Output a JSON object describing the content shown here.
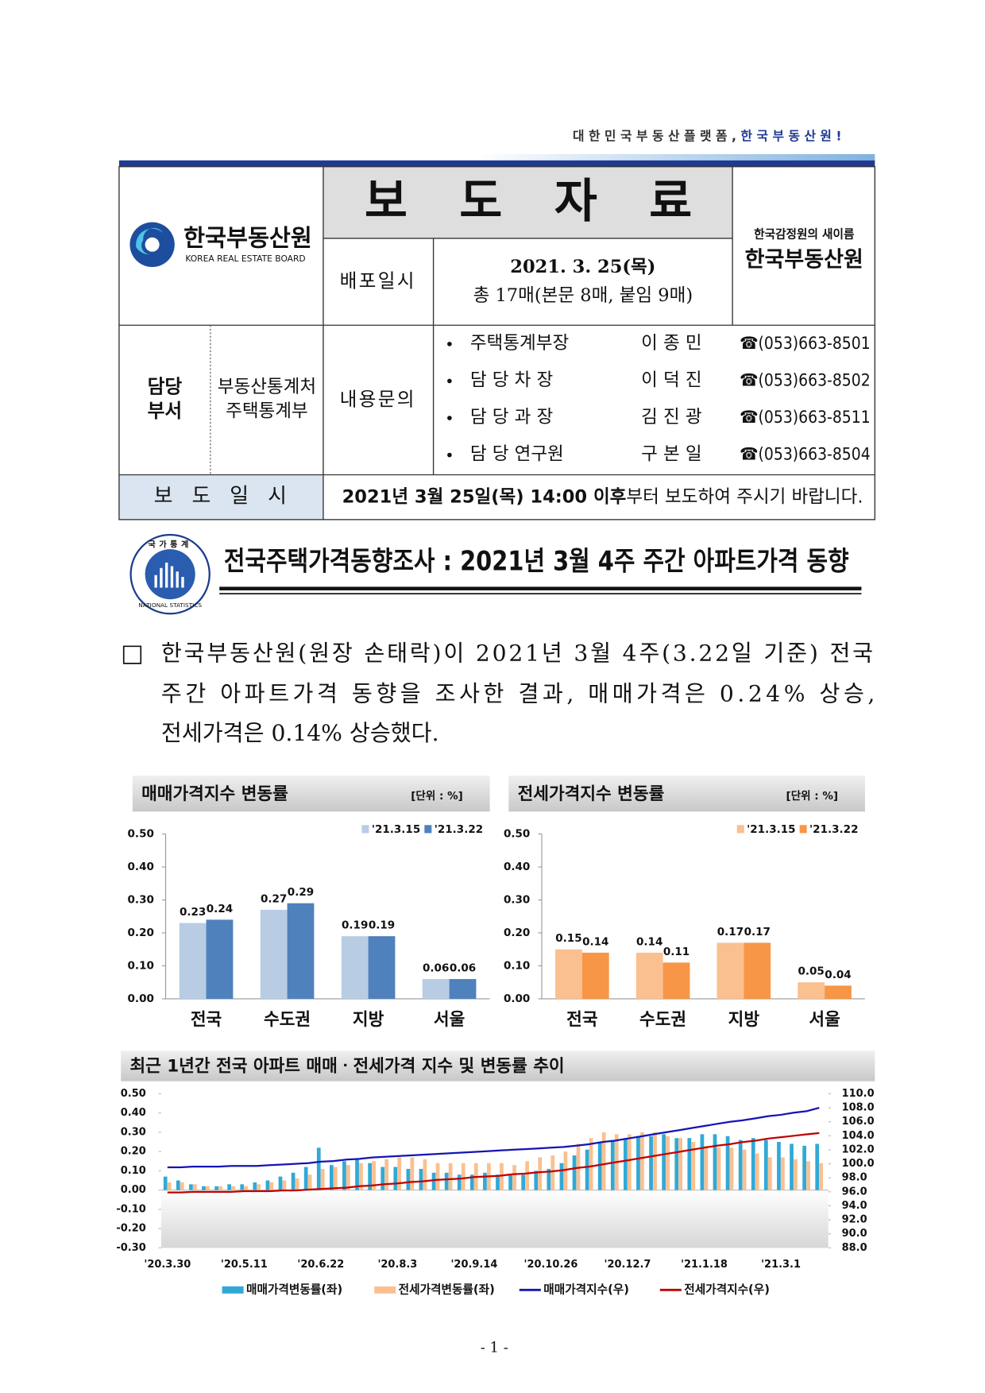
{
  "header": {
    "slogan": "대 한 민 국  부 동 산  플 랫 폼 ,  ",
    "slogan_brand": "한 국 부 동 산 원 !"
  },
  "logo": {
    "name": "한국부동산원",
    "name_en": "KOREA REAL ESTATE BOARD"
  },
  "table": {
    "title": "보 도 자 료",
    "new_name_note": "한국감정원의 새이름",
    "new_name": "한국부동산원",
    "release_label": "배포일시",
    "release_date": "2021. 3. 25(목)",
    "pages": "총 17매(본문 8매, 붙임 9매)",
    "dept_label": [
      "담당",
      "부서"
    ],
    "dept": [
      "부동산통계처",
      "주택통계부"
    ],
    "contact_label": "내용문의",
    "contacts": [
      {
        "role": "주택통계부장",
        "name": "이 종 민",
        "phone": "☎(053)663-8501"
      },
      {
        "role": "담 당 차  장",
        "name": "이 덕 진",
        "phone": "☎(053)663-8502"
      },
      {
        "role": "담 당 과  장",
        "name": "김 진 광",
        "phone": "☎(053)663-8511"
      },
      {
        "role": "담 당 연구원",
        "name": "구 본 일",
        "phone": "☎(053)663-8504"
      }
    ],
    "embargo_label": "보 도 일 시",
    "embargo_bold": "2021년 3월 25일(목) 14:00 이후",
    "embargo_rest": "부터 보도하여 주시기 바랍니다."
  },
  "emblem": {
    "text_top": "국가통계",
    "text_bottom": "NATIONAL STATISTICS"
  },
  "title": "전국주택가격동향조사 : 2021년 3월 4주 주간 아파트가격 동향",
  "paragraph": {
    "bullet": "□",
    "lines": [
      "한국부동산원(원장 손태락)이 2021년 3월 4주(3.22일 기준) 전국",
      "주간 아파트가격 동향을 조사한 결과, 매매가격은 0.24% 상승,",
      "전세가격은 0.14% 상승했다."
    ]
  },
  "chart_data": [
    {
      "type": "bar",
      "title": "매매가격지수 변동률",
      "unit": "[단위 : %]",
      "categories": [
        "전국",
        "수도권",
        "지방",
        "서울"
      ],
      "series": [
        {
          "name": "'21.3.15",
          "color": "#b8cce4",
          "values": [
            0.23,
            0.27,
            0.19,
            0.06
          ]
        },
        {
          "name": "'21.3.22",
          "color": "#4f81bd",
          "values": [
            0.24,
            0.29,
            0.19,
            0.06
          ]
        }
      ],
      "ylim": [
        0,
        0.5
      ],
      "yticks": [
        {
          "value": 0,
          "label": "0.00"
        },
        {
          "value": 0.1,
          "label": "0.10"
        },
        {
          "value": 0.2,
          "label": "0.20"
        },
        {
          "value": 0.3,
          "label": "0.30"
        },
        {
          "value": 0.4,
          "label": "0.40"
        },
        {
          "value": 0.5,
          "label": "0.50"
        }
      ]
    },
    {
      "type": "bar",
      "title": "전세가격지수 변동률",
      "unit": "[단위 : %]",
      "categories": [
        "전국",
        "수도권",
        "지방",
        "서울"
      ],
      "series": [
        {
          "name": "'21.3.15",
          "color": "#fac090",
          "values": [
            0.15,
            0.14,
            0.17,
            0.05
          ]
        },
        {
          "name": "'21.3.22",
          "color": "#f79646",
          "values": [
            0.14,
            0.11,
            0.17,
            0.04
          ]
        }
      ],
      "ylim": [
        0,
        0.5
      ],
      "yticks": [
        {
          "value": 0,
          "label": "0.00"
        },
        {
          "value": 0.1,
          "label": "0.10"
        },
        {
          "value": 0.2,
          "label": "0.20"
        },
        {
          "value": 0.3,
          "label": "0.30"
        },
        {
          "value": 0.4,
          "label": "0.40"
        },
        {
          "value": 0.5,
          "label": "0.50"
        }
      ]
    },
    {
      "type": "combo",
      "title": "최근 1년간 전국 아파트 매매ㆍ전세가격 지수 및 변동률 추이",
      "categories": [
        "'20.3.30",
        null,
        null,
        null,
        null,
        null,
        "'20.5.11",
        null,
        null,
        null,
        null,
        null,
        "'20.6.22",
        null,
        null,
        null,
        null,
        null,
        "'20.8.3",
        null,
        null,
        null,
        null,
        null,
        "'20.9.14",
        null,
        null,
        null,
        null,
        null,
        "'20.10.26",
        null,
        null,
        null,
        null,
        null,
        "'20.12.7",
        null,
        null,
        null,
        null,
        null,
        "'21.1.18",
        null,
        null,
        null,
        null,
        null,
        "'21.3.1",
        null,
        null,
        null
      ],
      "series": [
        {
          "name": "매매가격변동률(좌)",
          "type": "bar",
          "color": "#31a9d6",
          "values": [
            0.07,
            0.05,
            0.03,
            0.02,
            0.02,
            0.03,
            0.03,
            0.04,
            0.05,
            0.07,
            0.09,
            0.12,
            0.22,
            0.13,
            0.15,
            0.16,
            0.14,
            0.12,
            0.12,
            0.11,
            0.11,
            0.09,
            0.09,
            0.08,
            0.08,
            0.09,
            0.08,
            0.08,
            0.08,
            0.1,
            0.11,
            0.14,
            0.18,
            0.21,
            0.25,
            0.26,
            0.27,
            0.28,
            0.28,
            0.29,
            0.27,
            0.27,
            0.29,
            0.29,
            0.28,
            0.26,
            0.27,
            0.26,
            0.25,
            0.24,
            0.23,
            0.24
          ]
        },
        {
          "name": "전세가격변동률(좌)",
          "type": "bar",
          "color": "#fac090",
          "values": [
            0.04,
            0.04,
            0.03,
            0.02,
            0.02,
            0.02,
            0.02,
            0.03,
            0.04,
            0.05,
            0.06,
            0.08,
            0.11,
            0.12,
            0.13,
            0.14,
            0.15,
            0.16,
            0.17,
            0.17,
            0.16,
            0.14,
            0.14,
            0.14,
            0.14,
            0.14,
            0.14,
            0.13,
            0.15,
            0.17,
            0.18,
            0.2,
            0.24,
            0.27,
            0.3,
            0.29,
            0.29,
            0.3,
            0.3,
            0.28,
            0.27,
            0.25,
            0.23,
            0.22,
            0.22,
            0.21,
            0.19,
            0.17,
            0.17,
            0.16,
            0.15,
            0.14
          ]
        },
        {
          "name": "매매가격지수(우)",
          "type": "line",
          "axis": "y2",
          "color": "#1414b4",
          "values": [
            99.5,
            99.5,
            99.6,
            99.6,
            99.6,
            99.7,
            99.7,
            99.7,
            99.8,
            99.9,
            100.0,
            100.1,
            100.3,
            100.4,
            100.6,
            100.7,
            100.9,
            101.0,
            101.1,
            101.2,
            101.3,
            101.4,
            101.5,
            101.6,
            101.7,
            101.8,
            101.9,
            102.0,
            102.1,
            102.2,
            102.3,
            102.4,
            102.6,
            102.8,
            103.1,
            103.3,
            103.6,
            103.9,
            104.2,
            104.5,
            104.8,
            105.1,
            105.4,
            105.7,
            106.0,
            106.2,
            106.5,
            106.8,
            107.0,
            107.3,
            107.5,
            108.0
          ]
        },
        {
          "name": "전세가격지수(우)",
          "type": "line",
          "axis": "y2",
          "color": "#c00000",
          "values": [
            95.9,
            95.9,
            96.0,
            96.0,
            96.0,
            96.0,
            96.1,
            96.1,
            96.1,
            96.2,
            96.2,
            96.3,
            96.4,
            96.5,
            96.6,
            96.8,
            96.9,
            97.1,
            97.2,
            97.4,
            97.5,
            97.7,
            97.8,
            97.9,
            98.1,
            98.2,
            98.3,
            98.5,
            98.6,
            98.8,
            98.9,
            99.1,
            99.4,
            99.6,
            99.9,
            100.2,
            100.5,
            100.8,
            101.1,
            101.4,
            101.7,
            102.0,
            102.3,
            102.6,
            102.8,
            103.1,
            103.3,
            103.6,
            103.8,
            104.0,
            104.2,
            104.4
          ]
        }
      ],
      "ylim": [
        -0.3,
        0.5
      ],
      "yticks": [
        {
          "value": -0.3,
          "label": "-0.30"
        },
        {
          "value": -0.2,
          "label": "-0.20"
        },
        {
          "value": -0.1,
          "label": "-0.10"
        },
        {
          "value": 0,
          "label": "0.00"
        },
        {
          "value": 0.1,
          "label": "0.10"
        },
        {
          "value": 0.2,
          "label": "0.20"
        },
        {
          "value": 0.3,
          "label": "0.30"
        },
        {
          "value": 0.4,
          "label": "0.40"
        },
        {
          "value": 0.5,
          "label": "0.50"
        }
      ],
      "y2lim": [
        88,
        110
      ],
      "y2ticks": [
        {
          "value": 88,
          "label": "88.0"
        },
        {
          "value": 90,
          "label": "90.0"
        },
        {
          "value": 92,
          "label": "92.0"
        },
        {
          "value": 94,
          "label": "94.0"
        },
        {
          "value": 96,
          "label": "96.0"
        },
        {
          "value": 98,
          "label": "98.0"
        },
        {
          "value": 100,
          "label": "100.0"
        },
        {
          "value": 102,
          "label": "102.0"
        },
        {
          "value": 104,
          "label": "104.0"
        },
        {
          "value": 106,
          "label": "106.0"
        },
        {
          "value": 108,
          "label": "108.0"
        },
        {
          "value": 110,
          "label": "110.0"
        }
      ]
    }
  ],
  "page_number": "- 1 -"
}
